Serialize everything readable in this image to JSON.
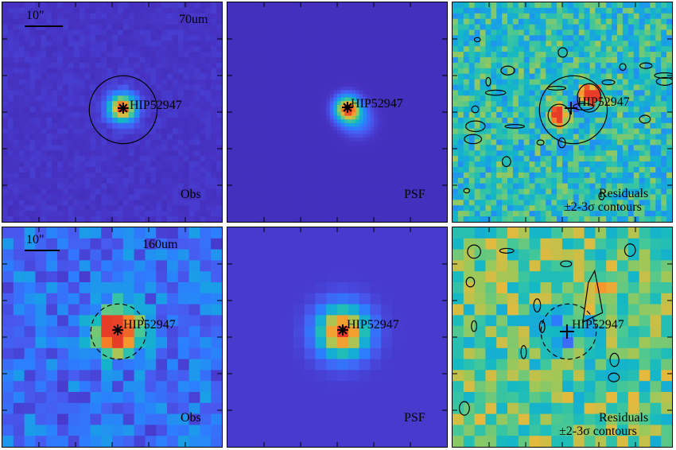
{
  "panels": [
    {
      "id": "p1",
      "kind": "obs",
      "band": "70um",
      "scale": "10\"",
      "corner_label": "Obs",
      "target": "HIP52947",
      "aperture": "solid"
    },
    {
      "id": "p2",
      "kind": "psf",
      "band": "",
      "scale": "",
      "corner_label": "PSF",
      "target": "HIP52947",
      "aperture": "none"
    },
    {
      "id": "p3",
      "kind": "res",
      "band": "",
      "scale": "",
      "corner_label": "Residuals",
      "corner_label2": "±2-3σ contours",
      "target": "HIP52947",
      "aperture": "solid"
    },
    {
      "id": "p4",
      "kind": "obs160",
      "band": "160um",
      "scale": "10\"",
      "corner_label": "Obs",
      "target": "HIP52947",
      "aperture": "dashed"
    },
    {
      "id": "p5",
      "kind": "psf160",
      "band": "",
      "scale": "",
      "corner_label": "PSF",
      "target": "HIP52947",
      "aperture": "none"
    },
    {
      "id": "p6",
      "kind": "res160",
      "band": "",
      "scale": "",
      "corner_label": "Residuals",
      "corner_label2": "±2-3σ contours",
      "target": "HIP52947",
      "aperture": "dashed"
    }
  ],
  "colors": {
    "background_purple": "#6b2c91",
    "frame": "#000000"
  }
}
